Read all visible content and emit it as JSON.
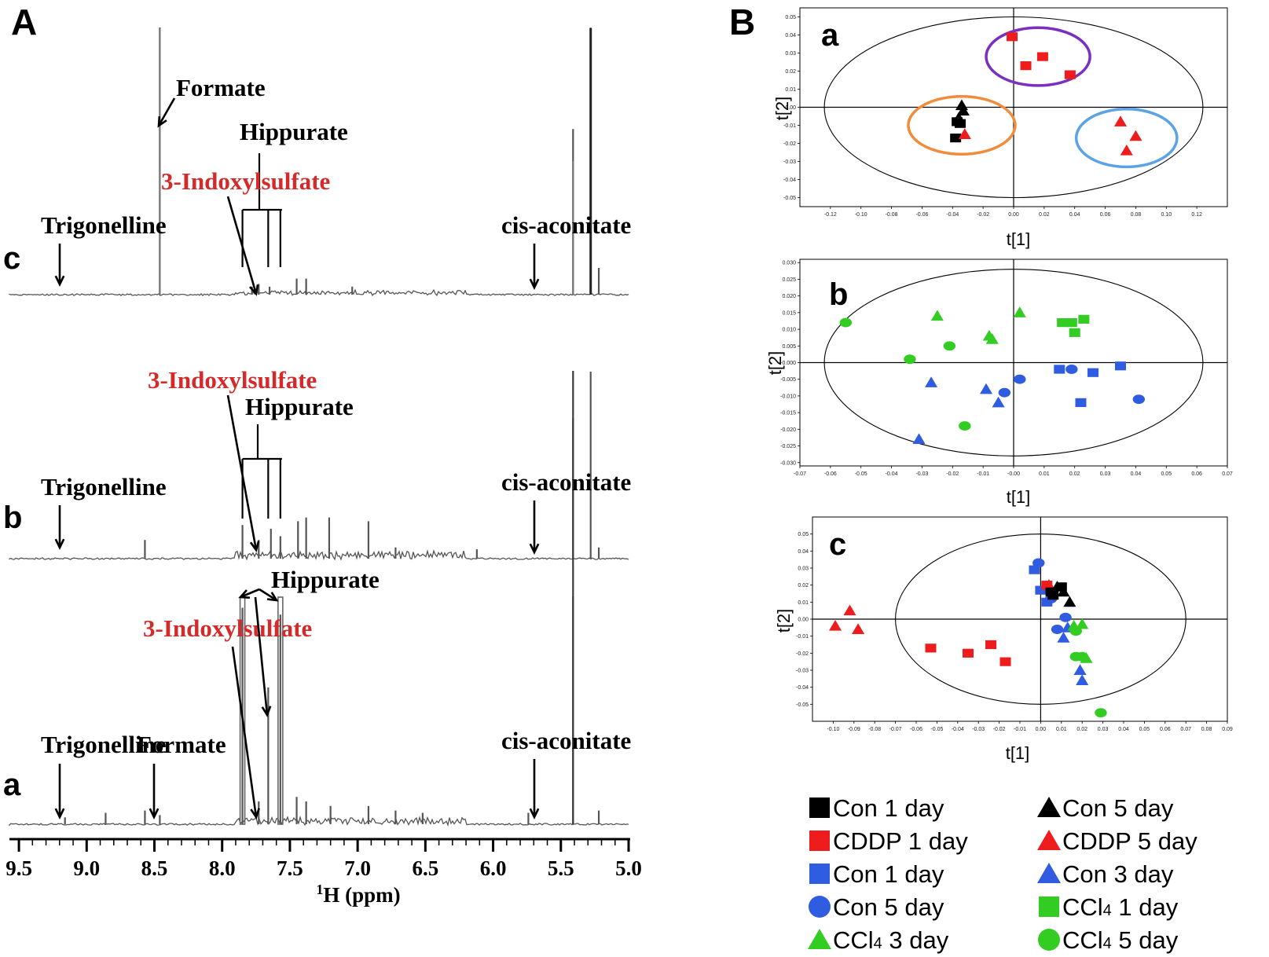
{
  "figure": {
    "panel_A_label": "A",
    "panel_B_label": "B"
  },
  "colors": {
    "black": "#000000",
    "red": "#ee1c1c",
    "blue": "#2f5ce0",
    "green": "#33cc22",
    "orange": "#f08c3a",
    "purple": "#7b2fbe",
    "lightblue": "#5aa3e6",
    "annotation_red": "#d42a2a",
    "spectrum": "#555555"
  },
  "chart_data": [
    {
      "type": "line",
      "panel": "A",
      "xlabel_superscript": "1",
      "xlabel": "H (ppm)",
      "xlim": [
        9.5,
        5.0
      ],
      "x_ticks": [
        "9.5",
        "9.0",
        "8.5",
        "8.0",
        "7.5",
        "7.0",
        "6.5",
        "6.0",
        "5.5",
        "5.0"
      ],
      "traces": [
        {
          "name": "c",
          "peaks": [
            [
              8.46,
              1.0
            ],
            [
              7.78,
              0.03
            ],
            [
              7.73,
              0.04
            ],
            [
              7.65,
              0.03
            ],
            [
              7.45,
              0.06
            ],
            [
              7.38,
              0.06
            ],
            [
              7.04,
              0.03
            ],
            [
              5.41,
              0.62
            ],
            [
              5.28,
              1.0
            ],
            [
              5.22,
              0.1
            ]
          ],
          "annotations": [
            {
              "label": "Formate",
              "color": "black"
            },
            {
              "label": "Hippurate",
              "color": "black"
            },
            {
              "label": "3-Indoxylsulfate",
              "color": "red"
            },
            {
              "label": "Trigonelline",
              "color": "black"
            },
            {
              "label": "cis-aconitate",
              "color": "black"
            }
          ]
        },
        {
          "name": "b",
          "peaks": [
            [
              8.57,
              0.1
            ],
            [
              7.85,
              0.18
            ],
            [
              7.73,
              0.1
            ],
            [
              7.64,
              0.16
            ],
            [
              7.57,
              0.12
            ],
            [
              7.44,
              0.2
            ],
            [
              7.38,
              0.22
            ],
            [
              7.21,
              0.22
            ],
            [
              6.92,
              0.2
            ],
            [
              6.72,
              0.06
            ],
            [
              6.12,
              0.05
            ],
            [
              5.41,
              0.75
            ],
            [
              5.28,
              1.0
            ],
            [
              5.22,
              0.06
            ]
          ],
          "annotations": [
            {
              "label": "3-Indoxylsulfate",
              "color": "red"
            },
            {
              "label": "Hippurate",
              "color": "black"
            },
            {
              "label": "Trigonelline",
              "color": "black"
            },
            {
              "label": "cis-aconitate",
              "color": "black"
            }
          ]
        },
        {
          "name": "a",
          "peaks": [
            [
              9.16,
              0.03
            ],
            [
              8.86,
              0.05
            ],
            [
              8.57,
              0.06
            ],
            [
              8.46,
              0.04
            ],
            [
              7.85,
              0.95
            ],
            [
              7.73,
              0.1
            ],
            [
              7.66,
              0.6
            ],
            [
              7.57,
              0.92
            ],
            [
              7.45,
              0.12
            ],
            [
              7.38,
              0.1
            ],
            [
              7.2,
              0.08
            ],
            [
              6.92,
              0.08
            ],
            [
              6.72,
              0.06
            ],
            [
              6.52,
              0.05
            ],
            [
              5.74,
              0.05
            ],
            [
              5.41,
              1.0
            ],
            [
              5.22,
              0.06
            ]
          ],
          "annotations": [
            {
              "label": "Hippurate",
              "color": "black"
            },
            {
              "label": "3-Indoxylsulfate",
              "color": "red"
            },
            {
              "label": "Trigonelline",
              "color": "black"
            },
            {
              "label": "Formate",
              "color": "black"
            },
            {
              "label": "cis-aconitate",
              "color": "black"
            }
          ]
        }
      ]
    },
    {
      "type": "scatter",
      "panel": "B-a",
      "label": "a",
      "xlabel": "t[1]",
      "ylabel": "t[2]",
      "xlim": [
        -0.14,
        0.14
      ],
      "ylim": [
        -0.055,
        0.055
      ],
      "x_ticks": [
        "-0.12",
        "-0.10",
        "-0.08",
        "-0.06",
        "-0.04",
        "-0.02",
        "0.00",
        "0.02",
        "0.04",
        "0.06",
        "0.08",
        "0.10",
        "0.12"
      ],
      "y_ticks": [
        "0.05",
        "0.04",
        "0.03",
        "0.02",
        "0.01",
        "0.00",
        "-0.01",
        "-0.02",
        "-0.03",
        "-0.04",
        "-0.05"
      ],
      "ellipse_rx": 0.124,
      "ellipse_ry": 0.05,
      "groups_circles": [
        {
          "color": "orange",
          "cx": -0.034,
          "cy": -0.01,
          "rx": 0.035,
          "ry": 0.016
        },
        {
          "color": "purple",
          "cx": 0.016,
          "cy": 0.028,
          "rx": 0.034,
          "ry": 0.016
        },
        {
          "color": "lightblue",
          "cx": 0.074,
          "cy": -0.017,
          "rx": 0.033,
          "ry": 0.016
        }
      ],
      "points": [
        {
          "x": -0.034,
          "y": 0.001,
          "shape": "triangle",
          "color": "black"
        },
        {
          "x": -0.033,
          "y": -0.002,
          "shape": "triangle",
          "color": "black"
        },
        {
          "x": -0.036,
          "y": -0.006,
          "shape": "triangle",
          "color": "black"
        },
        {
          "x": -0.037,
          "y": -0.008,
          "shape": "square",
          "color": "black"
        },
        {
          "x": -0.035,
          "y": -0.009,
          "shape": "square",
          "color": "black"
        },
        {
          "x": -0.038,
          "y": -0.017,
          "shape": "square",
          "color": "black"
        },
        {
          "x": -0.032,
          "y": -0.015,
          "shape": "triangle",
          "color": "red"
        },
        {
          "x": -0.001,
          "y": 0.039,
          "shape": "square",
          "color": "red"
        },
        {
          "x": 0.008,
          "y": 0.023,
          "shape": "square",
          "color": "red"
        },
        {
          "x": 0.019,
          "y": 0.028,
          "shape": "square",
          "color": "red"
        },
        {
          "x": 0.037,
          "y": 0.018,
          "shape": "square",
          "color": "red"
        },
        {
          "x": 0.07,
          "y": -0.008,
          "shape": "triangle",
          "color": "red"
        },
        {
          "x": 0.08,
          "y": -0.016,
          "shape": "triangle",
          "color": "red"
        },
        {
          "x": 0.074,
          "y": -0.024,
          "shape": "triangle",
          "color": "red"
        }
      ]
    },
    {
      "type": "scatter",
      "panel": "B-b",
      "label": "b",
      "xlabel": "t[1]",
      "ylabel": "t[2]",
      "xlim": [
        -0.07,
        0.07
      ],
      "ylim": [
        -0.031,
        0.031
      ],
      "x_ticks": [
        "-0.07",
        "-0.06",
        "-0.05",
        "-0.04",
        "-0.03",
        "-0.02",
        "-0.01",
        "-0.00",
        "0.01",
        "0.02",
        "0.03",
        "0.04",
        "0.05",
        "0.06",
        "0.07"
      ],
      "y_ticks": [
        "0.030",
        "0.025",
        "0.020",
        "0.015",
        "0.010",
        "0.005",
        "-0.000",
        "-0.005",
        "-0.010",
        "-0.015",
        "-0.020",
        "-0.025",
        "-0.030"
      ],
      "ellipse_rx": 0.062,
      "ellipse_ry": 0.028,
      "points": [
        {
          "x": -0.055,
          "y": 0.012,
          "shape": "circle",
          "color": "green"
        },
        {
          "x": -0.025,
          "y": 0.014,
          "shape": "triangle",
          "color": "green"
        },
        {
          "x": -0.008,
          "y": 0.008,
          "shape": "triangle",
          "color": "green"
        },
        {
          "x": -0.007,
          "y": 0.007,
          "shape": "triangle",
          "color": "green"
        },
        {
          "x": 0.002,
          "y": 0.015,
          "shape": "triangle",
          "color": "green"
        },
        {
          "x": -0.021,
          "y": 0.005,
          "shape": "circle",
          "color": "green"
        },
        {
          "x": -0.034,
          "y": 0.001,
          "shape": "circle",
          "color": "green"
        },
        {
          "x": -0.016,
          "y": -0.019,
          "shape": "circle",
          "color": "green"
        },
        {
          "x": 0.016,
          "y": 0.012,
          "shape": "square",
          "color": "green"
        },
        {
          "x": 0.019,
          "y": 0.012,
          "shape": "square",
          "color": "green"
        },
        {
          "x": 0.023,
          "y": 0.013,
          "shape": "square",
          "color": "green"
        },
        {
          "x": 0.02,
          "y": 0.009,
          "shape": "square",
          "color": "green"
        },
        {
          "x": 0.015,
          "y": -0.002,
          "shape": "square",
          "color": "blue"
        },
        {
          "x": 0.026,
          "y": -0.003,
          "shape": "square",
          "color": "blue"
        },
        {
          "x": 0.035,
          "y": -0.001,
          "shape": "square",
          "color": "blue"
        },
        {
          "x": 0.022,
          "y": -0.012,
          "shape": "square",
          "color": "blue"
        },
        {
          "x": 0.019,
          "y": -0.002,
          "shape": "circle",
          "color": "blue"
        },
        {
          "x": 0.002,
          "y": -0.005,
          "shape": "circle",
          "color": "blue"
        },
        {
          "x": -0.003,
          "y": -0.009,
          "shape": "circle",
          "color": "blue"
        },
        {
          "x": 0.041,
          "y": -0.011,
          "shape": "circle",
          "color": "blue"
        },
        {
          "x": -0.027,
          "y": -0.006,
          "shape": "triangle",
          "color": "blue"
        },
        {
          "x": -0.009,
          "y": -0.008,
          "shape": "triangle",
          "color": "blue"
        },
        {
          "x": -0.005,
          "y": -0.012,
          "shape": "triangle",
          "color": "blue"
        },
        {
          "x": -0.031,
          "y": -0.023,
          "shape": "triangle",
          "color": "blue"
        }
      ]
    },
    {
      "type": "scatter",
      "panel": "B-c",
      "label": "c",
      "xlabel": "t[1]",
      "ylabel": "t[2]",
      "xlim": [
        -0.11,
        0.09
      ],
      "ylim": [
        -0.06,
        0.06
      ],
      "x_ticks": [
        "-0.10",
        "-0.09",
        "-0.08",
        "-0.07",
        "-0.06",
        "-0.05",
        "-0.04",
        "-0.03",
        "-0.02",
        "-0.01",
        "0.00",
        "0.01",
        "0.02",
        "0.03",
        "0.04",
        "0.05",
        "0.06",
        "0.07",
        "0.08",
        "0.09"
      ],
      "y_ticks": [
        "0.05",
        "0.04",
        "0.03",
        "0.02",
        "0.01",
        "0.00",
        "-0.01",
        "-0.02",
        "-0.03",
        "-0.04",
        "-0.05"
      ],
      "ellipse_rx": 0.07,
      "ellipse_ry": 0.05,
      "points": [
        {
          "x": -0.092,
          "y": 0.005,
          "shape": "triangle",
          "color": "red"
        },
        {
          "x": -0.099,
          "y": -0.004,
          "shape": "triangle",
          "color": "red"
        },
        {
          "x": -0.088,
          "y": -0.006,
          "shape": "triangle",
          "color": "red"
        },
        {
          "x": -0.053,
          "y": -0.017,
          "shape": "square",
          "color": "red"
        },
        {
          "x": -0.035,
          "y": -0.02,
          "shape": "square",
          "color": "red"
        },
        {
          "x": -0.024,
          "y": -0.015,
          "shape": "square",
          "color": "red"
        },
        {
          "x": -0.017,
          "y": -0.025,
          "shape": "square",
          "color": "red"
        },
        {
          "x": -0.003,
          "y": 0.029,
          "shape": "square",
          "color": "blue"
        },
        {
          "x": -0.001,
          "y": 0.033,
          "shape": "circle",
          "color": "blue"
        },
        {
          "x": 0.0,
          "y": 0.017,
          "shape": "square",
          "color": "blue"
        },
        {
          "x": 0.003,
          "y": 0.01,
          "shape": "square",
          "color": "blue"
        },
        {
          "x": 0.005,
          "y": 0.012,
          "shape": "circle",
          "color": "blue"
        },
        {
          "x": 0.004,
          "y": 0.02,
          "shape": "triangle",
          "color": "red"
        },
        {
          "x": 0.003,
          "y": 0.02,
          "shape": "square",
          "color": "red"
        },
        {
          "x": 0.005,
          "y": 0.016,
          "shape": "square",
          "color": "black"
        },
        {
          "x": 0.006,
          "y": 0.014,
          "shape": "square",
          "color": "black"
        },
        {
          "x": 0.008,
          "y": 0.019,
          "shape": "triangle",
          "color": "black"
        },
        {
          "x": 0.01,
          "y": 0.019,
          "shape": "square",
          "color": "black"
        },
        {
          "x": 0.011,
          "y": 0.016,
          "shape": "triangle",
          "color": "black"
        },
        {
          "x": 0.014,
          "y": 0.01,
          "shape": "triangle",
          "color": "black"
        },
        {
          "x": 0.012,
          "y": 0.001,
          "shape": "circle",
          "color": "blue"
        },
        {
          "x": 0.008,
          "y": -0.006,
          "shape": "circle",
          "color": "blue"
        },
        {
          "x": 0.013,
          "y": -0.005,
          "shape": "triangle",
          "color": "blue"
        },
        {
          "x": 0.011,
          "y": -0.011,
          "shape": "triangle",
          "color": "blue"
        },
        {
          "x": 0.016,
          "y": -0.004,
          "shape": "triangle",
          "color": "green"
        },
        {
          "x": 0.02,
          "y": -0.003,
          "shape": "triangle",
          "color": "green"
        },
        {
          "x": 0.017,
          "y": -0.007,
          "shape": "circle",
          "color": "green"
        },
        {
          "x": 0.017,
          "y": -0.022,
          "shape": "circle",
          "color": "green"
        },
        {
          "x": 0.02,
          "y": -0.022,
          "shape": "circle",
          "color": "green"
        },
        {
          "x": 0.022,
          "y": -0.023,
          "shape": "triangle",
          "color": "green"
        },
        {
          "x": 0.019,
          "y": -0.03,
          "shape": "triangle",
          "color": "blue"
        },
        {
          "x": 0.02,
          "y": -0.036,
          "shape": "triangle",
          "color": "blue"
        },
        {
          "x": 0.029,
          "y": -0.055,
          "shape": "circle",
          "color": "green"
        }
      ]
    }
  ],
  "legend": [
    {
      "shape": "square",
      "color": "black",
      "label": "Con 1 day",
      "sub": ""
    },
    {
      "shape": "triangle",
      "color": "black",
      "label": "Con 5 day",
      "sub": ""
    },
    {
      "shape": "square",
      "color": "red",
      "label": "CDDP 1 day",
      "sub": ""
    },
    {
      "shape": "triangle",
      "color": "red",
      "label": "CDDP 5 day",
      "sub": ""
    },
    {
      "shape": "square",
      "color": "blue",
      "label": "Con 1 day",
      "sub": ""
    },
    {
      "shape": "triangle",
      "color": "blue",
      "label": "Con 3 day",
      "sub": ""
    },
    {
      "shape": "circle",
      "color": "blue",
      "label": "Con 5 day",
      "sub": ""
    },
    {
      "shape": "square",
      "color": "green",
      "label": "CCl",
      "sub": "4",
      "tail": " 1 day"
    },
    {
      "shape": "triangle",
      "color": "green",
      "label": " CCl",
      "sub": "4",
      "tail": " 3 day"
    },
    {
      "shape": "circle",
      "color": "green",
      "label": "CCl",
      "sub": "4",
      "tail": " 5 day"
    }
  ]
}
